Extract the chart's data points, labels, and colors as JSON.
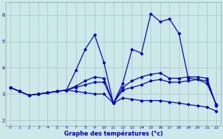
{
  "xlabel": "Graphe des températures (°c)",
  "bg_color": "#cce8e8",
  "grid_color": "#aacece",
  "line_color": "#0000cc",
  "xlim": [
    -0.5,
    22.5
  ],
  "ylim": [
    1.8,
    6.5
  ],
  "xticks": [
    0,
    1,
    2,
    3,
    4,
    5,
    6,
    7,
    8,
    9,
    10,
    11,
    12,
    13,
    14,
    15,
    16,
    17,
    18,
    19,
    20,
    21,
    22
  ],
  "yticks": [
    2,
    3,
    4,
    5,
    6
  ],
  "series": [
    [
      3.25,
      3.1,
      2.95,
      3.0,
      3.05,
      3.1,
      3.15,
      3.9,
      4.7,
      5.25,
      4.2,
      2.65,
      3.4,
      4.7,
      4.55,
      6.05,
      5.75,
      5.85,
      5.3,
      3.6,
      3.55,
      3.4,
      2.6
    ],
    [
      3.25,
      3.1,
      2.95,
      3.0,
      3.05,
      3.1,
      3.15,
      3.25,
      3.35,
      3.45,
      3.45,
      2.65,
      3.15,
      3.25,
      3.35,
      3.5,
      3.55,
      3.45,
      3.45,
      3.5,
      3.55,
      3.5,
      2.55
    ],
    [
      3.25,
      3.1,
      2.95,
      3.0,
      3.05,
      3.1,
      3.15,
      3.3,
      3.5,
      3.65,
      3.6,
      2.65,
      3.25,
      3.5,
      3.65,
      3.75,
      3.8,
      3.6,
      3.6,
      3.65,
      3.65,
      3.6,
      2.55
    ],
    [
      3.25,
      3.1,
      2.95,
      3.0,
      3.05,
      3.1,
      3.15,
      3.1,
      3.05,
      3.0,
      3.0,
      2.65,
      2.85,
      2.8,
      2.75,
      2.75,
      2.75,
      2.7,
      2.65,
      2.6,
      2.55,
      2.5,
      2.35
    ]
  ]
}
